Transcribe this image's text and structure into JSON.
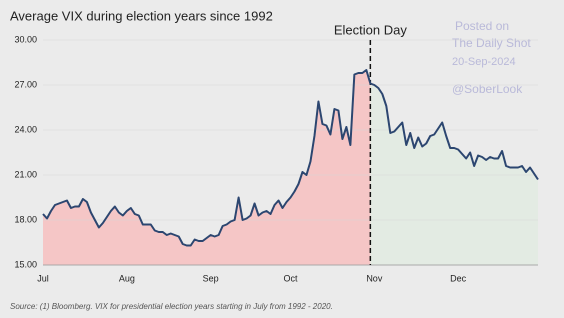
{
  "chart_data": {
    "type": "line",
    "title": "Average VIX during election years since 1992",
    "annotation": "Election Day",
    "source": "Source: (1) Bloomberg. VIX for presidential election years starting in July from 1992 - 2020.",
    "watermark": [
      "Posted on",
      "The Daily Shot",
      "20-Sep-2024",
      "@SoberLook"
    ],
    "categories": [
      "Jul",
      null,
      null,
      null,
      null,
      null,
      null,
      null,
      null,
      null,
      null,
      null,
      null,
      null,
      null,
      null,
      null,
      null,
      null,
      null,
      null,
      "Aug",
      null,
      null,
      null,
      null,
      null,
      null,
      null,
      null,
      null,
      null,
      null,
      null,
      null,
      null,
      null,
      null,
      null,
      null,
      null,
      null,
      "Sep",
      null,
      null,
      null,
      null,
      null,
      null,
      null,
      null,
      null,
      null,
      null,
      null,
      null,
      null,
      null,
      null,
      null,
      null,
      null,
      "Oct",
      null,
      null,
      null,
      null,
      null,
      null,
      null,
      null,
      null,
      null,
      null,
      null,
      null,
      null,
      null,
      null,
      null,
      null,
      null,
      null,
      "Nov",
      null,
      null,
      null,
      null,
      null,
      null,
      null,
      null,
      null,
      null,
      null,
      null,
      null,
      null,
      null,
      null,
      null,
      null,
      null,
      null,
      "Dec",
      null,
      null,
      null,
      null,
      null,
      null,
      null,
      null,
      null,
      null,
      null,
      null,
      null,
      null,
      null,
      null,
      null,
      null,
      null,
      null
    ],
    "values": [
      18.4,
      18.1,
      18.6,
      19.0,
      19.1,
      19.2,
      19.3,
      18.8,
      18.9,
      18.9,
      19.4,
      19.2,
      18.5,
      18.0,
      17.5,
      17.8,
      18.2,
      18.6,
      18.9,
      18.5,
      18.3,
      18.6,
      18.8,
      18.4,
      18.3,
      17.7,
      17.7,
      17.7,
      17.3,
      17.2,
      17.2,
      17.0,
      17.1,
      17.0,
      16.9,
      16.4,
      16.3,
      16.3,
      16.7,
      16.6,
      16.6,
      16.8,
      17.0,
      16.9,
      17.0,
      17.6,
      17.7,
      17.9,
      18.0,
      19.5,
      18.0,
      18.1,
      18.3,
      19.1,
      18.3,
      18.5,
      18.6,
      18.4,
      19.0,
      19.3,
      18.8,
      19.2,
      19.5,
      19.9,
      20.4,
      21.2,
      21.0,
      21.9,
      23.6,
      25.9,
      24.4,
      24.3,
      23.7,
      25.4,
      25.3,
      23.4,
      24.2,
      23.0,
      27.7,
      27.8,
      27.8,
      28.0,
      27.1,
      27.0,
      26.8,
      26.4,
      25.6,
      23.8,
      23.9,
      24.2,
      24.5,
      23.0,
      23.8,
      22.8,
      23.5,
      22.9,
      23.1,
      23.6,
      23.7,
      24.1,
      24.5,
      23.6,
      22.8,
      22.8,
      22.7,
      22.4,
      22.1,
      22.5,
      21.6,
      22.3,
      22.2,
      22.0,
      22.2,
      22.1,
      22.1,
      22.6,
      21.6,
      21.5,
      21.5,
      21.5,
      21.6,
      21.2,
      21.5,
      21.1,
      20.7
    ],
    "color": "#2c4670",
    "fill_before": "#f5c6c6",
    "fill_after": "#e3ebe3",
    "ylim": [
      15,
      30
    ],
    "yticks": [
      {
        "value": 15,
        "label": "15.00"
      },
      {
        "value": 18,
        "label": "18.00"
      },
      {
        "value": 21,
        "label": "21.00"
      },
      {
        "value": 24,
        "label": "24.00"
      },
      {
        "value": 27,
        "label": "27.00"
      },
      {
        "value": 30,
        "label": "30.00"
      }
    ],
    "grid": true
  }
}
